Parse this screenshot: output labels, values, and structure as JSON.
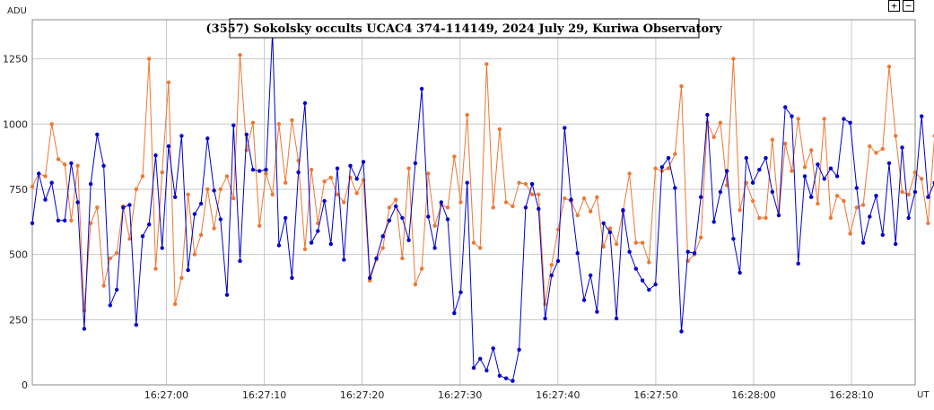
{
  "controls": {
    "zoom_in_label": "+",
    "zoom_out_label": "−"
  },
  "chart_data": {
    "type": "line",
    "title": "(3557) Sokolsky occults UCAC4 374-114149, 2024 July 29, Kuriwa Observatory",
    "ylabel": "ADU",
    "xlabel": "UT",
    "ylim": [
      0,
      1400
    ],
    "xlim": [
      -13.7,
      76.5
    ],
    "grid": true,
    "x_tick_values": [
      0,
      10,
      20,
      30,
      40,
      50,
      60,
      70
    ],
    "x_tick_labels": [
      "16:27:00",
      "16:27:10",
      "16:27:20",
      "16:27:30",
      "16:27:40",
      "16:27:50",
      "16:28:00",
      "16:28:10"
    ],
    "y_ticks": [
      0,
      250,
      500,
      750,
      1000,
      1250
    ],
    "colors": {
      "series1": "#0000cc",
      "series2": "#ee7733"
    },
    "x0": -13.7,
    "dt": 0.6632,
    "series": [
      {
        "color": "#0000cc",
        "values": [
          620,
          810,
          710,
          775,
          630,
          630,
          850,
          700,
          215,
          770,
          960,
          840,
          305,
          365,
          680,
          690,
          230,
          570,
          615,
          880,
          525,
          915,
          720,
          955,
          440,
          655,
          695,
          945,
          745,
          635,
          345,
          995,
          475,
          960,
          825,
          820,
          825,
          1350,
          535,
          640,
          410,
          815,
          1080,
          545,
          590,
          705,
          540,
          830,
          480,
          840,
          790,
          855,
          410,
          485,
          570,
          630,
          685,
          640,
          555,
          850,
          1135,
          645,
          525,
          700,
          635,
          275,
          355,
          775,
          65,
          100,
          55,
          140,
          35,
          25,
          15,
          135,
          680,
          770,
          675,
          255,
          420,
          475,
          985,
          710,
          505,
          325,
          420,
          280,
          620,
          585,
          255,
          670,
          510,
          445,
          400,
          365,
          385,
          835,
          870,
          755,
          205,
          510,
          505,
          720,
          1035,
          625,
          740,
          820,
          560,
          430,
          870,
          775,
          825,
          870,
          740,
          650,
          1065,
          1030,
          465,
          800,
          720,
          845,
          790,
          830,
          800,
          1020,
          1005,
          755,
          545,
          645,
          725,
          575,
          850,
          540,
          910,
          640,
          740,
          1030,
          720,
          775
        ]
      },
      {
        "color": "#ee7733",
        "values": [
          760,
          810,
          800,
          1000,
          865,
          845,
          630,
          840,
          285,
          620,
          680,
          380,
          485,
          505,
          685,
          560,
          750,
          800,
          1250,
          445,
          815,
          1160,
          310,
          410,
          730,
          500,
          575,
          750,
          600,
          750,
          800,
          715,
          1265,
          900,
          1005,
          610,
          810,
          730,
          1000,
          775,
          1015,
          860,
          520,
          825,
          620,
          780,
          795,
          730,
          700,
          795,
          735,
          785,
          400,
          480,
          525,
          680,
          710,
          485,
          830,
          385,
          445,
          810,
          610,
          690,
          680,
          875,
          700,
          1035,
          545,
          525,
          1230,
          680,
          980,
          700,
          685,
          775,
          770,
          730,
          730,
          310,
          460,
          595,
          715,
          705,
          650,
          715,
          665,
          720,
          530,
          600,
          540,
          665,
          810,
          545,
          545,
          470,
          830,
          820,
          830,
          885,
          1145,
          475,
          500,
          565,
          1005,
          950,
          1005,
          765,
          1250,
          670,
          775,
          705,
          640,
          640,
          940,
          650,
          925,
          820,
          1020,
          835,
          900,
          695,
          1020,
          640,
          725,
          705,
          580,
          680,
          690,
          915,
          890,
          905,
          1220,
          955,
          740,
          730,
          815,
          790,
          620,
          955
        ]
      }
    ]
  }
}
